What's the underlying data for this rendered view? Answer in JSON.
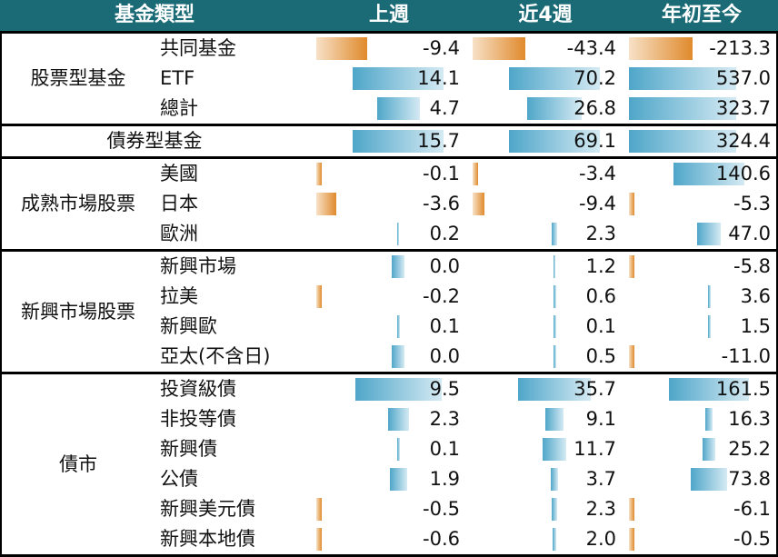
{
  "header": {
    "category": "基金類型",
    "col1": "上週",
    "col2": "近4週",
    "col3": "年初至今"
  },
  "groups": [
    {
      "label": "股票型基金",
      "rows": [
        {
          "label": "共同基金",
          "values": [
            "-9.4",
            "-43.4",
            "-213.3"
          ]
        },
        {
          "label": "ETF",
          "values": [
            "14.1",
            "70.2",
            "537.0"
          ]
        },
        {
          "label": "總計",
          "values": [
            "4.7",
            "26.8",
            "323.7"
          ]
        }
      ]
    },
    {
      "label": "債券型基金",
      "rows": [
        {
          "label": "",
          "values": [
            "15.7",
            "69.1",
            "324.4"
          ]
        }
      ]
    },
    {
      "label": "成熟市場股票",
      "rows": [
        {
          "label": "美國",
          "values": [
            "-0.1",
            "-3.4",
            "140.6"
          ]
        },
        {
          "label": "日本",
          "values": [
            "-3.6",
            "-9.4",
            "-5.3"
          ]
        },
        {
          "label": "歐洲",
          "values": [
            "0.2",
            "2.3",
            "47.0"
          ]
        }
      ]
    },
    {
      "label": "新興市場股票",
      "rows": [
        {
          "label": "新興市場",
          "values": [
            "0.0",
            "1.2",
            "-5.8"
          ]
        },
        {
          "label": "拉美",
          "values": [
            "-0.2",
            "0.6",
            "3.6"
          ]
        },
        {
          "label": "新興歐",
          "values": [
            "0.1",
            "0.1",
            "1.5"
          ]
        },
        {
          "label": "亞太(不含日)",
          "values": [
            "0.0",
            "0.5",
            "-11.0"
          ]
        }
      ]
    },
    {
      "label": "債市",
      "rows": [
        {
          "label": "投資級債",
          "values": [
            "9.5",
            "35.7",
            "161.5"
          ]
        },
        {
          "label": "非投等債",
          "values": [
            "2.3",
            "9.1",
            "16.3"
          ]
        },
        {
          "label": "新興債",
          "values": [
            "0.1",
            "11.7",
            "25.2"
          ]
        },
        {
          "label": "公債",
          "values": [
            "1.9",
            "3.7",
            "73.8"
          ]
        },
        {
          "label": "新興美元債",
          "values": [
            "-0.5",
            "2.3",
            "-6.1"
          ]
        },
        {
          "label": "新興本地債",
          "values": [
            "-0.6",
            "2.0",
            "-0.5"
          ]
        }
      ]
    }
  ],
  "colors": {
    "header_bg": "#1b6b76",
    "positive_bar": "#4fa6c9",
    "negative_bar": "#e08a2c"
  },
  "chart_data": {
    "type": "table",
    "columns": [
      "基金類型",
      "上週",
      "近4週",
      "年初至今"
    ],
    "rows": [
      [
        "股票型基金 共同基金",
        -9.4,
        -43.4,
        -213.3
      ],
      [
        "股票型基金 ETF",
        14.1,
        70.2,
        537.0
      ],
      [
        "股票型基金 總計",
        4.7,
        26.8,
        323.7
      ],
      [
        "債券型基金",
        15.7,
        69.1,
        324.4
      ],
      [
        "成熟市場股票 美國",
        -0.1,
        -3.4,
        140.6
      ],
      [
        "成熟市場股票 日本",
        -3.6,
        -9.4,
        -5.3
      ],
      [
        "成熟市場股票 歐洲",
        0.2,
        2.3,
        47.0
      ],
      [
        "新興市場股票 新興市場",
        0.0,
        1.2,
        -5.8
      ],
      [
        "新興市場股票 拉美",
        -0.2,
        0.6,
        3.6
      ],
      [
        "新興市場股票 新興歐",
        0.1,
        0.1,
        1.5
      ],
      [
        "新興市場股票 亞太(不含日)",
        0.0,
        0.5,
        -11.0
      ],
      [
        "債市 投資級債",
        9.5,
        35.7,
        161.5
      ],
      [
        "債市 非投等債",
        2.3,
        9.1,
        16.3
      ],
      [
        "債市 新興債",
        0.1,
        11.7,
        25.2
      ],
      [
        "債市 公債",
        1.9,
        3.7,
        73.8
      ],
      [
        "債市 新興美元債",
        -0.5,
        2.3,
        -6.1
      ],
      [
        "債市 新興本地債",
        -0.6,
        2.0,
        -0.5
      ]
    ]
  }
}
